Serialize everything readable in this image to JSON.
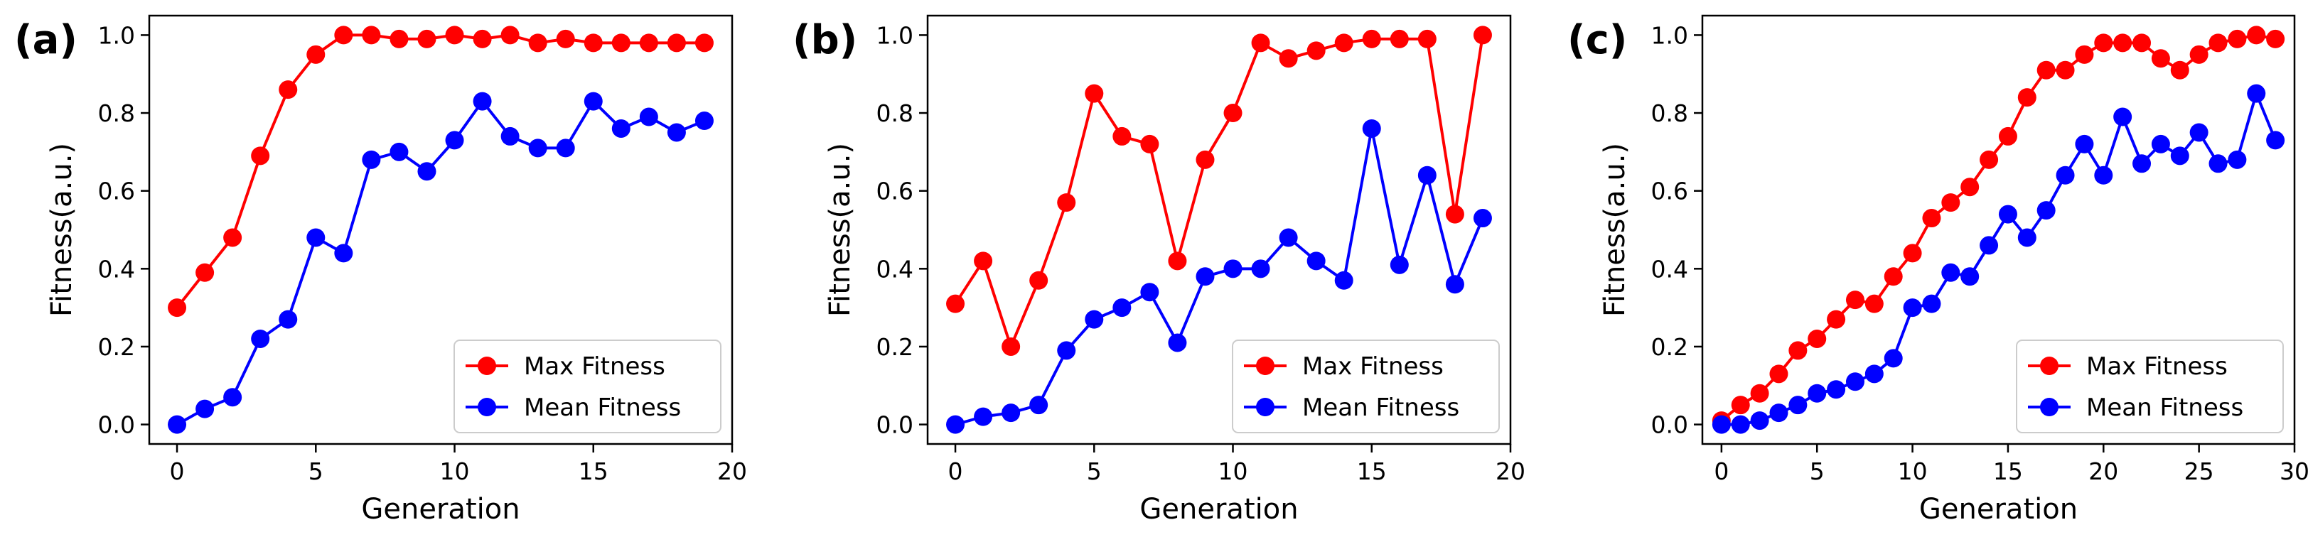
{
  "colors": {
    "max": "#ff0000",
    "mean": "#0000ff"
  },
  "chart_data": [
    {
      "type": "line",
      "panel_label": "(a)",
      "xlabel": "Generation",
      "ylabel": "Fitness(a.u.)",
      "xlim": [
        -1,
        20
      ],
      "ylim": [
        -0.05,
        1.05
      ],
      "xticks": [
        0,
        5,
        10,
        15,
        20
      ],
      "xtick_labels": [
        "0",
        "5",
        "10",
        "15",
        "20"
      ],
      "yticks": [
        0,
        0.2,
        0.4,
        0.6,
        0.8,
        1.0
      ],
      "ytick_labels": [
        "0.0",
        "0.2",
        "0.4",
        "0.6",
        "0.8",
        "1.0"
      ],
      "legend_position": "lower-right",
      "x": [
        0,
        1,
        2,
        3,
        4,
        5,
        6,
        7,
        8,
        9,
        10,
        11,
        12,
        13,
        14,
        15,
        16,
        17,
        18,
        19
      ],
      "series": [
        {
          "name": "Max Fitness",
          "values": [
            0.3,
            0.39,
            0.48,
            0.69,
            0.86,
            0.95,
            1.0,
            1.0,
            0.99,
            0.99,
            1.0,
            0.99,
            1.0,
            0.98,
            0.99,
            0.98,
            0.98,
            0.98,
            0.98,
            0.98
          ]
        },
        {
          "name": "Mean Fitness",
          "values": [
            0.0,
            0.04,
            0.07,
            0.22,
            0.27,
            0.48,
            0.44,
            0.68,
            0.7,
            0.65,
            0.73,
            0.83,
            0.74,
            0.71,
            0.71,
            0.83,
            0.76,
            0.79,
            0.75,
            0.78
          ]
        }
      ]
    },
    {
      "type": "line",
      "panel_label": "(b)",
      "xlabel": "Generation",
      "ylabel": "Fitness(a.u.)",
      "xlim": [
        -1,
        20
      ],
      "ylim": [
        -0.05,
        1.05
      ],
      "xticks": [
        0,
        5,
        10,
        15,
        20
      ],
      "xtick_labels": [
        "0",
        "5",
        "10",
        "15",
        "20"
      ],
      "yticks": [
        0,
        0.2,
        0.4,
        0.6,
        0.8,
        1.0
      ],
      "ytick_labels": [
        "0.0",
        "0.2",
        "0.4",
        "0.6",
        "0.8",
        "1.0"
      ],
      "legend_position": "lower-right",
      "x": [
        0,
        1,
        2,
        3,
        4,
        5,
        6,
        7,
        8,
        9,
        10,
        11,
        12,
        13,
        14,
        15,
        16,
        17,
        18,
        19
      ],
      "series": [
        {
          "name": "Max Fitness",
          "values": [
            0.31,
            0.42,
            0.2,
            0.37,
            0.57,
            0.85,
            0.74,
            0.72,
            0.42,
            0.68,
            0.8,
            0.98,
            0.94,
            0.96,
            0.98,
            0.99,
            0.99,
            0.99,
            0.54,
            1.0
          ]
        },
        {
          "name": "Mean Fitness",
          "values": [
            0.0,
            0.02,
            0.03,
            0.05,
            0.19,
            0.27,
            0.3,
            0.34,
            0.21,
            0.38,
            0.4,
            0.4,
            0.48,
            0.42,
            0.37,
            0.76,
            0.41,
            0.64,
            0.36,
            0.53
          ]
        }
      ]
    },
    {
      "type": "line",
      "panel_label": "(c)",
      "xlabel": "Generation",
      "ylabel": "Fitness(a.u.)",
      "xlim": [
        -1,
        30
      ],
      "ylim": [
        -0.05,
        1.05
      ],
      "xticks": [
        0,
        5,
        10,
        15,
        20,
        25,
        30
      ],
      "xtick_labels": [
        "0",
        "5",
        "10",
        "15",
        "20",
        "25",
        "30"
      ],
      "yticks": [
        0,
        0.2,
        0.4,
        0.6,
        0.8,
        1.0
      ],
      "ytick_labels": [
        "0.0",
        "0.2",
        "0.4",
        "0.6",
        "0.8",
        "1.0"
      ],
      "legend_position": "lower-right",
      "x": [
        0,
        1,
        2,
        3,
        4,
        5,
        6,
        7,
        8,
        9,
        10,
        11,
        12,
        13,
        14,
        15,
        16,
        17,
        18,
        19,
        20,
        21,
        22,
        23,
        24,
        25,
        26,
        27,
        28,
        29
      ],
      "series": [
        {
          "name": "Max Fitness",
          "values": [
            0.01,
            0.05,
            0.08,
            0.13,
            0.19,
            0.22,
            0.27,
            0.32,
            0.31,
            0.38,
            0.44,
            0.53,
            0.57,
            0.61,
            0.68,
            0.74,
            0.84,
            0.91,
            0.91,
            0.95,
            0.98,
            0.98,
            0.98,
            0.94,
            0.91,
            0.95,
            0.98,
            0.99,
            1.0,
            0.99
          ]
        },
        {
          "name": "Mean Fitness",
          "values": [
            0.0,
            0.0,
            0.01,
            0.03,
            0.05,
            0.08,
            0.09,
            0.11,
            0.13,
            0.17,
            0.3,
            0.31,
            0.39,
            0.38,
            0.46,
            0.54,
            0.48,
            0.55,
            0.64,
            0.72,
            0.64,
            0.79,
            0.67,
            0.72,
            0.69,
            0.75,
            0.67,
            0.68,
            0.85,
            0.73
          ]
        }
      ]
    }
  ]
}
